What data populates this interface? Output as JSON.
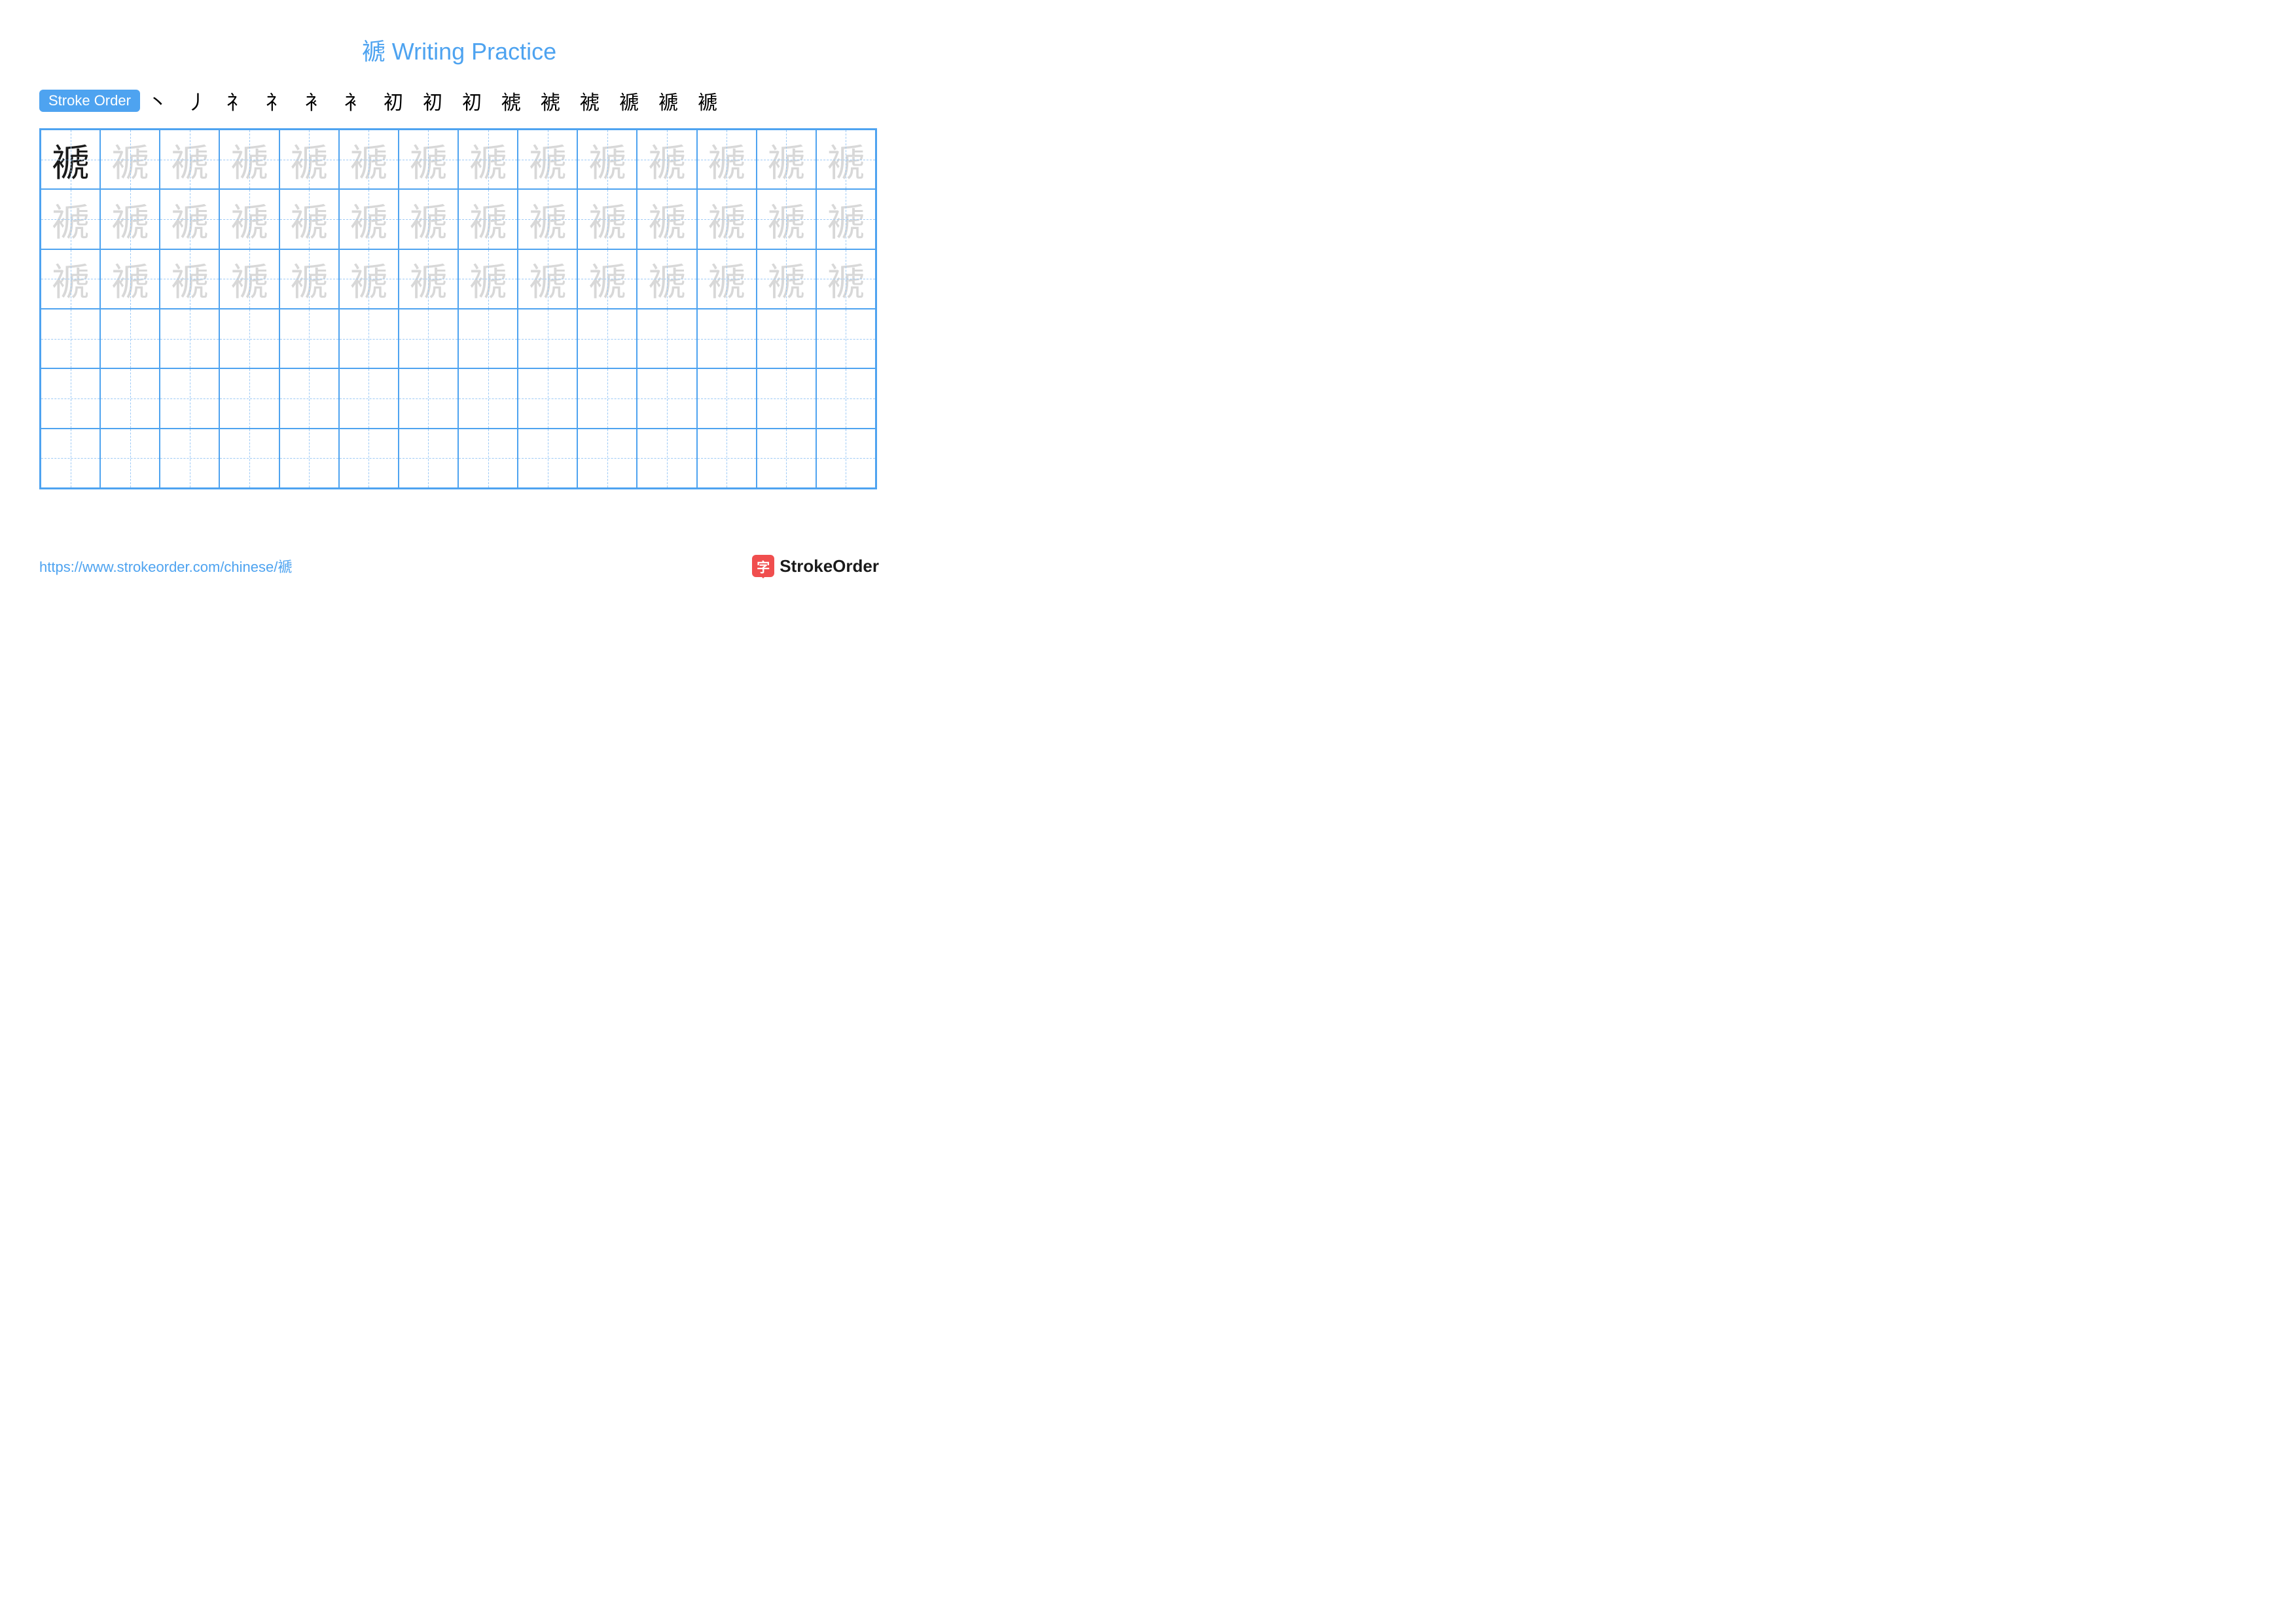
{
  "colors": {
    "accent": "#4ea3f0",
    "grid_border": "#4ea3f0",
    "grid_guide": "#9cc9f5",
    "title": "#4ea3f0",
    "badge_bg": "#4ea3f0",
    "char_dark": "#1a1a1a",
    "char_light": "#d8d8d8",
    "url": "#4ea3f0",
    "logo_badge": "#f04e4e",
    "logo_text": "#1a1a1a"
  },
  "character": "褫",
  "title": "褫 Writing Practice",
  "stroke_order": {
    "label": "Stroke Order",
    "steps": [
      "丶",
      "丿",
      "礻",
      "礻",
      "衤",
      "衤",
      "初",
      "初",
      "初",
      "裭",
      "裭",
      "裭",
      "褫",
      "褫",
      "褫"
    ]
  },
  "grid": {
    "cols": 14,
    "rows": 6,
    "trace_rows": 3,
    "first_cell_dark": true
  },
  "footer": {
    "url": "https://www.strokeorder.com/chinese/褫",
    "logo_char": "字",
    "logo_text": "StrokeOrder"
  }
}
